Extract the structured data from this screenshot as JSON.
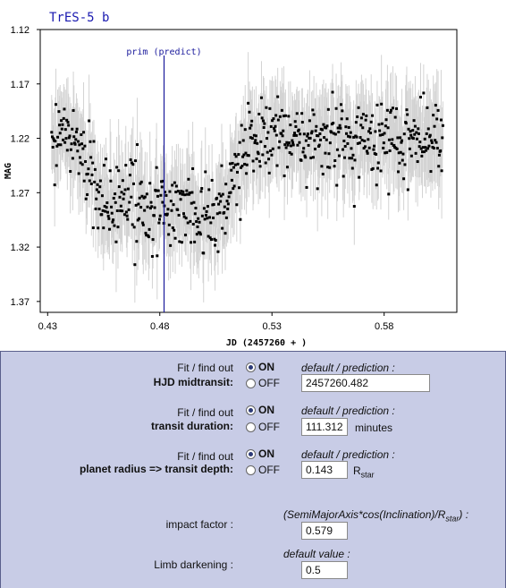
{
  "chart_data": {
    "type": "scatter",
    "title": "TrES-5 b",
    "xlabel": "JD (2457260 + )",
    "ylabel": "MAG",
    "xlim": [
      0.4267,
      0.6124
    ],
    "ylim": [
      1.12,
      1.38
    ],
    "y_inverted": false,
    "x_ticks": [
      "0.43",
      "0.48",
      "0.53",
      "0.58"
    ],
    "x_tick_values": [
      0.43,
      0.48,
      0.53,
      0.58
    ],
    "y_ticks": [
      "1.12",
      "1.17",
      "1.22",
      "1.27",
      "1.32",
      "1.37"
    ],
    "y_tick_values": [
      1.12,
      1.17,
      1.22,
      1.27,
      1.32,
      1.37
    ],
    "grid": false,
    "annotation": {
      "label": "prim (predict)",
      "x": 0.4819
    },
    "point_color": "#000000",
    "errorbar_color": "#d3d3d3",
    "marker_line_color": "#1a1a9c",
    "transit": {
      "t0": 0.4819,
      "depth": 0.065,
      "duration_days": 0.0773
    },
    "baseline_mag": 1.22,
    "scatter_mag": 0.018,
    "x_start": 0.4318,
    "x_end": 0.6062,
    "n_points": 650
  },
  "form": {
    "sections": [
      {
        "fit_label": "Fit / find out",
        "param_label": "HJD midtransit:",
        "on_label": "ON",
        "off_label": "OFF",
        "selected": "ON",
        "hint": "default / prediction :",
        "value": "2457260.482",
        "unit": ""
      },
      {
        "fit_label": "Fit / find out",
        "param_label": "transit duration:",
        "on_label": "ON",
        "off_label": "OFF",
        "selected": "ON",
        "hint": "default / prediction :",
        "value": "111.312",
        "unit": "minutes"
      },
      {
        "fit_label": "Fit / find out",
        "param_label": "planet radius => transit depth:",
        "on_label": "ON",
        "off_label": "OFF",
        "selected": "ON",
        "hint": "default / prediction :",
        "value": "0.143",
        "unit_main": "R",
        "unit_sub": "star"
      }
    ],
    "impact": {
      "label": "impact factor :",
      "hint_main": "(SemiMajorAxis*cos(Inclination)/R",
      "hint_sub": "star",
      "hint_end": ") :",
      "value": "0.579"
    },
    "limb": {
      "label": "Limb darkening :",
      "hint": "default value :",
      "value": "0.5"
    }
  }
}
